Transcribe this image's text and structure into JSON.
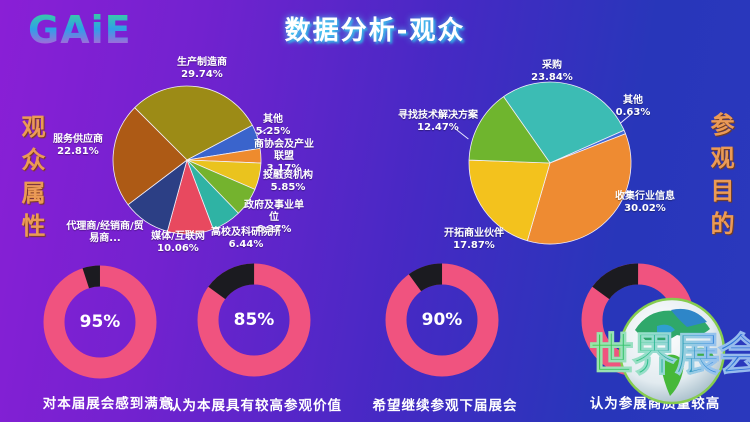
{
  "header": {
    "logo_text": "GAiE",
    "title": "数据分析-观众"
  },
  "sections": {
    "left_vertical_label": "观众属性",
    "right_vertical_label": "参观目的"
  },
  "watermark": {
    "text": "世界展会"
  },
  "colors": {
    "background_left": "#8a1fd6",
    "background_right": "#2a38bd",
    "donut_ring": "#f0537f",
    "donut_remainder": "#1b1b20",
    "section_label": "#eb9a56"
  },
  "chart_data": [
    {
      "type": "pie",
      "title": "观众属性",
      "legend_position": "around",
      "slices": [
        {
          "label": "生产制造商",
          "percent_label": "29.74%",
          "value": 29.74,
          "color": "#9c8b16"
        },
        {
          "label": "其他",
          "percent_label": "5.25%",
          "value": 5.25,
          "color": "#3a64cc"
        },
        {
          "label": "商协会及产业联盟",
          "percent_label": "3.17%",
          "value": 3.17,
          "color": "#ee8b2e"
        },
        {
          "label": "投融资机构",
          "percent_label": "5.85%",
          "value": 5.85,
          "color": "#eac31e"
        },
        {
          "label": "政府及事业单位",
          "percent_label": "6.27%",
          "value": 6.27,
          "color": "#74b32e"
        },
        {
          "label": "高校及科研院所",
          "percent_label": "6.44%",
          "value": 6.44,
          "color": "#2fb3a4"
        },
        {
          "label": "媒体/互联网",
          "percent_label": "10.06%",
          "value": 10.06,
          "color": "#e8495f"
        },
        {
          "label": "代理商/经销商/贸易商...",
          "percent_label": "",
          "value": 10.41,
          "color": "#2c3f85"
        },
        {
          "label": "服务供应商",
          "percent_label": "22.81%",
          "value": 22.81,
          "color": "#ad5a15"
        }
      ]
    },
    {
      "type": "pie",
      "title": "参观目的",
      "legend_position": "around",
      "slices": [
        {
          "label": "采购",
          "percent_label": "23.84%",
          "value": 23.84,
          "color": "#3cbcb4"
        },
        {
          "label": "其他",
          "percent_label": "0.63%",
          "value": 0.63,
          "color": "#4169d8"
        },
        {
          "label": "收集行业信息",
          "percent_label": "30.02%",
          "value": 30.02,
          "color": "#ee8b32"
        },
        {
          "label": "开拓商业伙伴",
          "percent_label": "17.87%",
          "value": 17.87,
          "color": "#f3c21d"
        },
        {
          "label": "寻找技术解决方案",
          "percent_label": "12.47%",
          "value": 12.47,
          "color": "#6fb52e"
        }
      ]
    },
    {
      "type": "donut",
      "ring_color": "#f0537f",
      "remainder_color": "#1b1b20",
      "items": [
        {
          "percent_label": "95%",
          "value": 95,
          "caption": "对本届展会感到满意"
        },
        {
          "percent_label": "85%",
          "value": 85,
          "caption": "认为本展具有较高参观价值"
        },
        {
          "percent_label": "90%",
          "value": 90,
          "caption": "希望继续参观下届展会"
        },
        {
          "percent_label": "",
          "value": 85,
          "caption": "认为参展商质量较高"
        }
      ]
    }
  ]
}
